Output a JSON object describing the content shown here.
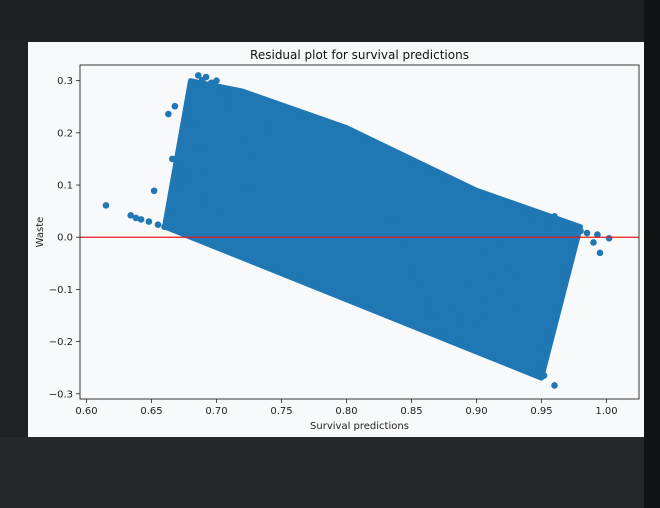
{
  "chart_data": {
    "type": "scatter",
    "title": "Residual plot for survival predictions",
    "xlabel": "Survival predictions",
    "ylabel": "Waste",
    "xlim": [
      0.595,
      1.025
    ],
    "ylim": [
      -0.31,
      0.33
    ],
    "xticks": [
      0.6,
      0.65,
      0.7,
      0.75,
      0.8,
      0.85,
      0.9,
      0.95,
      1.0
    ],
    "xtick_labels": [
      "0.60",
      "0.65",
      "0.70",
      "0.75",
      "0.80",
      "0.85",
      "0.90",
      "0.95",
      "1.00"
    ],
    "yticks": [
      -0.3,
      -0.2,
      -0.1,
      0.0,
      0.1,
      0.2,
      0.3
    ],
    "ytick_labels": [
      "−0.3",
      "−0.2",
      "−0.1",
      "0.0",
      "0.1",
      "0.2",
      "0.3"
    ],
    "grid": false,
    "reference_line": {
      "y": 0.0,
      "color": "#e31a1c"
    },
    "series": [
      {
        "color": "#1f77b4",
        "band": {
          "upper": [
            [
              0.68,
              0.3
            ],
            [
              0.72,
              0.28
            ],
            [
              0.8,
              0.21
            ],
            [
              0.9,
              0.09
            ],
            [
              0.98,
              0.02
            ]
          ],
          "lower": [
            [
              0.66,
              0.02
            ],
            [
              0.72,
              -0.04
            ],
            [
              0.8,
              -0.12
            ],
            [
              0.9,
              -0.22
            ],
            [
              0.95,
              -0.27
            ]
          ]
        },
        "points": [
          [
            0.615,
            0.061
          ],
          [
            0.634,
            0.042
          ],
          [
            0.638,
            0.037
          ],
          [
            0.642,
            0.034
          ],
          [
            0.648,
            0.03
          ],
          [
            0.652,
            0.089
          ],
          [
            0.655,
            0.024
          ],
          [
            0.66,
            0.02
          ],
          [
            0.663,
            0.236
          ],
          [
            0.666,
            0.15
          ],
          [
            0.668,
            0.251
          ],
          [
            0.671,
            0.101
          ],
          [
            0.676,
            0.122
          ],
          [
            0.679,
            0.24
          ],
          [
            0.682,
            0.289
          ],
          [
            0.686,
            0.31
          ],
          [
            0.689,
            0.301
          ],
          [
            0.692,
            0.307
          ],
          [
            0.696,
            0.296
          ],
          [
            0.7,
            0.3
          ],
          [
            0.703,
            0.284
          ],
          [
            0.707,
            0.268
          ],
          [
            0.711,
            0.25
          ],
          [
            0.684,
            0.212
          ],
          [
            0.688,
            0.17
          ],
          [
            0.692,
            0.13
          ],
          [
            0.679,
            0.1
          ],
          [
            0.69,
            0.07
          ],
          [
            0.7,
            0.045
          ],
          [
            0.725,
            0.095
          ],
          [
            0.728,
            0.15
          ],
          [
            0.722,
            0.19
          ],
          [
            0.74,
            0.21
          ],
          [
            0.835,
            0.03
          ],
          [
            0.845,
            -0.01
          ],
          [
            0.852,
            -0.05
          ],
          [
            0.858,
            -0.09
          ],
          [
            0.862,
            -0.13
          ],
          [
            0.868,
            -0.17
          ],
          [
            0.872,
            -0.11
          ],
          [
            0.878,
            -0.07
          ],
          [
            0.882,
            -0.14
          ],
          [
            0.888,
            -0.16
          ],
          [
            0.892,
            -0.09
          ],
          [
            0.897,
            -0.05
          ],
          [
            0.902,
            -0.12
          ],
          [
            0.905,
            -0.03
          ],
          [
            0.91,
            -0.07
          ],
          [
            0.916,
            0.0
          ],
          [
            0.921,
            -0.02
          ],
          [
            0.926,
            -0.06
          ],
          [
            0.93,
            -0.14
          ],
          [
            0.935,
            0.01
          ],
          [
            0.94,
            -0.04
          ],
          [
            0.944,
            0.03
          ],
          [
            0.947,
            -0.21
          ],
          [
            0.952,
            -0.265
          ],
          [
            0.96,
            -0.284
          ],
          [
            0.955,
            0.02
          ],
          [
            0.96,
            0.04
          ],
          [
            0.967,
            0.03
          ],
          [
            0.972,
            0.025
          ],
          [
            0.98,
            0.012
          ],
          [
            0.985,
            0.008
          ],
          [
            0.99,
            -0.01
          ],
          [
            0.995,
            -0.03
          ],
          [
            1.002,
            -0.002
          ],
          [
            0.993,
            0.005
          ],
          [
            0.929,
            -0.08
          ],
          [
            0.918,
            -0.11
          ],
          [
            0.908,
            -0.15
          ],
          [
            0.899,
            -0.17
          ],
          [
            0.887,
            -0.2
          ],
          [
            0.876,
            -0.19
          ],
          [
            0.866,
            -0.15
          ],
          [
            0.86,
            -0.11
          ],
          [
            0.85,
            -0.07
          ],
          [
            0.841,
            -0.04
          ]
        ]
      }
    ]
  }
}
